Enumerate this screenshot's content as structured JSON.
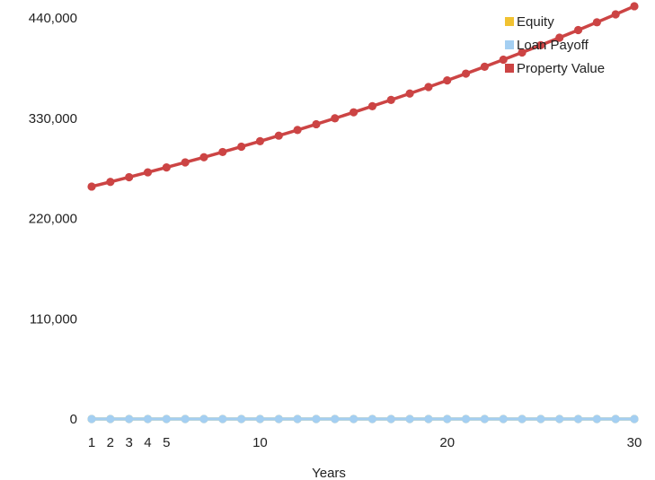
{
  "chart_data": {
    "type": "line",
    "title": "",
    "xlabel": "Years",
    "ylabel": "",
    "x": [
      1,
      2,
      3,
      4,
      5,
      6,
      7,
      8,
      9,
      10,
      11,
      12,
      13,
      14,
      15,
      16,
      17,
      18,
      19,
      20,
      21,
      22,
      23,
      24,
      25,
      26,
      27,
      28,
      29,
      30
    ],
    "x_tick_labels": [
      "1",
      "2",
      "3",
      "4",
      "5",
      "10",
      "20",
      "30"
    ],
    "x_tick_values": [
      1,
      2,
      3,
      4,
      5,
      10,
      20,
      30
    ],
    "y_tick_labels": [
      "0",
      "110,000",
      "220,000",
      "330,000",
      "440,000"
    ],
    "y_tick_values": [
      0,
      110000,
      220000,
      330000,
      440000
    ],
    "ylim": [
      0,
      440000
    ],
    "xlim": [
      1,
      30
    ],
    "grid": false,
    "legend_position": "top-right",
    "series": [
      {
        "name": "Equity",
        "color": "#f1c232",
        "values": [
          0,
          0,
          0,
          0,
          0,
          0,
          0,
          0,
          0,
          0,
          0,
          0,
          0,
          0,
          0,
          0,
          0,
          0,
          0,
          0,
          0,
          0,
          0,
          0,
          0,
          0,
          0,
          0,
          0,
          0
        ]
      },
      {
        "name": "Loan Payoff",
        "color": "#a4cff2",
        "values": [
          0,
          0,
          0,
          0,
          0,
          0,
          0,
          0,
          0,
          0,
          0,
          0,
          0,
          0,
          0,
          0,
          0,
          0,
          0,
          0,
          0,
          0,
          0,
          0,
          0,
          0,
          0,
          0,
          0,
          0
        ]
      },
      {
        "name": "Property Value",
        "color": "#cc4444",
        "values": [
          255000,
          260100,
          265302,
          270608,
          276020,
          281541,
          287171,
          292915,
          298773,
          304749,
          310844,
          317060,
          323402,
          329870,
          336467,
          343196,
          350060,
          357062,
          364203,
          371487,
          378917,
          386495,
          394225,
          402110,
          410152,
          418355,
          426722,
          435257,
          443962,
          452841
        ]
      }
    ]
  }
}
